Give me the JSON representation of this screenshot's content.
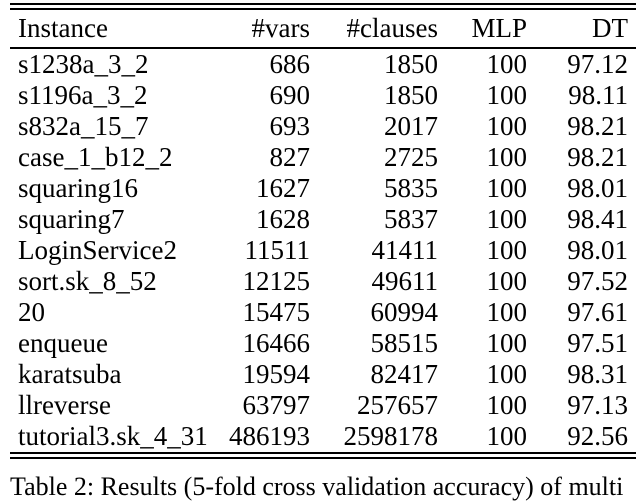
{
  "table": {
    "columns": [
      "Instance",
      "#vars",
      "#clauses",
      "MLP",
      "DT"
    ],
    "rows": [
      [
        "s1238a_3_2",
        "686",
        "1850",
        "100",
        "97.12"
      ],
      [
        "s1196a_3_2",
        "690",
        "1850",
        "100",
        "98.11"
      ],
      [
        "s832a_15_7",
        "693",
        "2017",
        "100",
        "98.21"
      ],
      [
        "case_1_b12_2",
        "827",
        "2725",
        "100",
        "98.21"
      ],
      [
        "squaring16",
        "1627",
        "5835",
        "100",
        "98.01"
      ],
      [
        "squaring7",
        "1628",
        "5837",
        "100",
        "98.41"
      ],
      [
        "LoginService2",
        "11511",
        "41411",
        "100",
        "98.01"
      ],
      [
        "sort.sk_8_52",
        "12125",
        "49611",
        "100",
        "97.52"
      ],
      [
        "20",
        "15475",
        "60994",
        "100",
        "97.61"
      ],
      [
        "enqueue",
        "16466",
        "58515",
        "100",
        "97.51"
      ],
      [
        "karatsuba",
        "19594",
        "82417",
        "100",
        "98.31"
      ],
      [
        "llreverse",
        "63797",
        "257657",
        "100",
        "97.13"
      ],
      [
        "tutorial3.sk_4_31",
        "486193",
        "2598178",
        "100",
        "92.56"
      ]
    ]
  },
  "caption": "Table 2: Results (5-fold cross validation accuracy) of multi"
}
